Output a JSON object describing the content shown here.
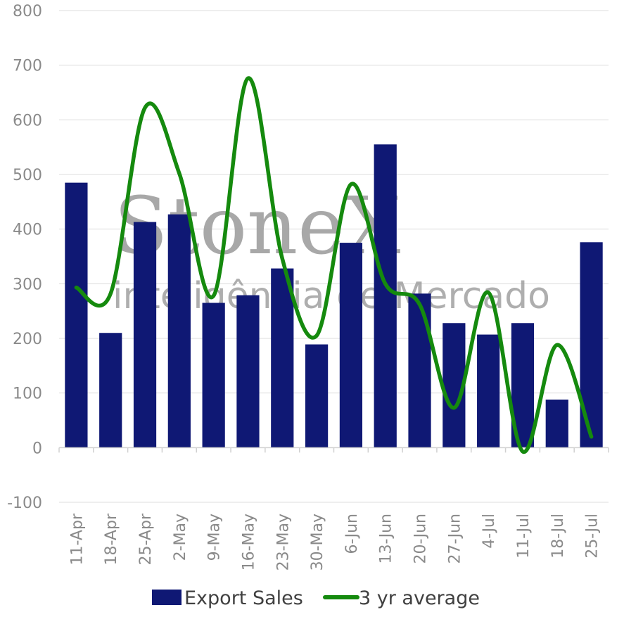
{
  "watermark": {
    "brand": "StoneX",
    "tagline": "inteligência de Mercado"
  },
  "chart_data": {
    "type": "bar",
    "title": "",
    "xlabel": "",
    "ylabel": "",
    "ylim": [
      -100,
      800
    ],
    "yticks": [
      -100,
      0,
      100,
      200,
      300,
      400,
      500,
      600,
      700,
      800
    ],
    "grid": true,
    "legend_position": "bottom",
    "categories": [
      "11-Apr",
      "18-Apr",
      "25-Apr",
      "2-May",
      "9-May",
      "16-May",
      "23-May",
      "30-May",
      "6-Jun",
      "13-Jun",
      "20-Jun",
      "27-Jun",
      "4-Jul",
      "11-Jul",
      "18-Jul",
      "25-Jul"
    ],
    "series": [
      {
        "name": "Export Sales",
        "type": "bar",
        "color": "#0f1874",
        "values": [
          485,
          210,
          413,
          427,
          265,
          279,
          328,
          189,
          375,
          555,
          282,
          228,
          207,
          228,
          88,
          376
        ]
      },
      {
        "name": "3 yr average",
        "type": "line",
        "smooth": true,
        "color": "#158a0e",
        "values": [
          293,
          282,
          622,
          502,
          278,
          676,
          346,
          205,
          482,
          300,
          262,
          73,
          284,
          -7,
          188,
          20
        ]
      }
    ]
  }
}
